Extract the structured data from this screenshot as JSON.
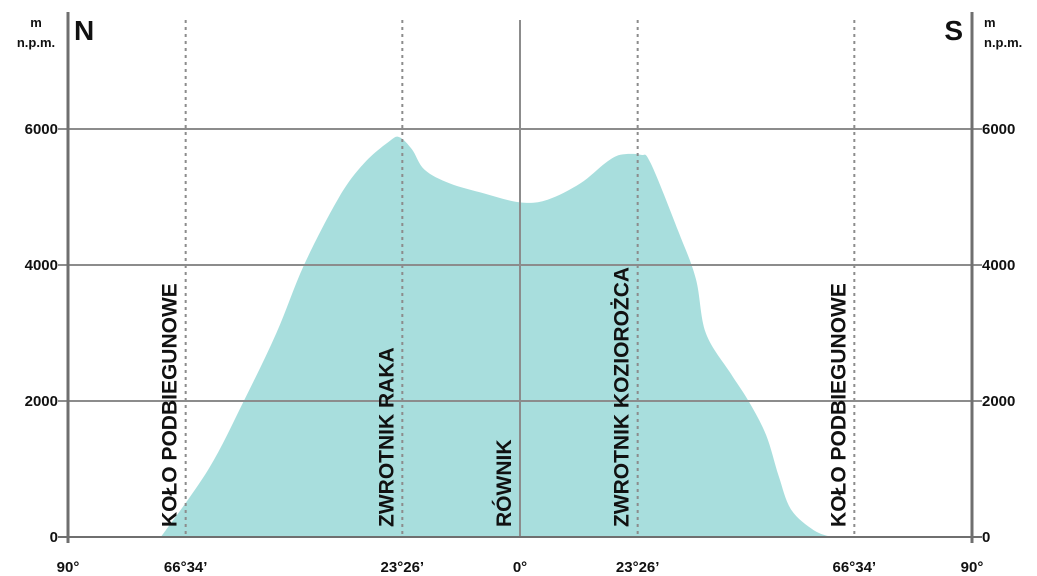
{
  "chart_data": {
    "type": "area",
    "title": "",
    "x_unit": "degrees latitude",
    "y_unit_left": [
      "m",
      "n.p.m."
    ],
    "y_unit_right": [
      "m",
      "n.p.m."
    ],
    "direction_left": "N",
    "direction_right": "S",
    "yticks": [
      0,
      2000,
      4000,
      6000
    ],
    "ylim": [
      0,
      6800
    ],
    "xlim": [
      -90,
      90
    ],
    "xticks": [
      {
        "value": -90,
        "label": "90°"
      },
      {
        "value": -66.57,
        "label": "66°34’"
      },
      {
        "value": -23.43,
        "label": "23°26’"
      },
      {
        "value": 0,
        "label": "0°"
      },
      {
        "value": 23.43,
        "label": "23°26’"
      },
      {
        "value": 66.57,
        "label": "66°34’"
      },
      {
        "value": 90,
        "label": "90°"
      }
    ],
    "reference_lines": [
      {
        "value": -66.57,
        "label": "KOŁO PODBIEGUNOWE",
        "style": "dotted"
      },
      {
        "value": -23.43,
        "label": "ZWROTNIK RAKA",
        "style": "dotted"
      },
      {
        "value": 0,
        "label": "RÓWNIK",
        "style": "solid"
      },
      {
        "value": 23.43,
        "label": "ZWROTNIK KOZIOROŻCA",
        "style": "dotted"
      },
      {
        "value": 66.57,
        "label": "KOŁO PODBIEGUNOWE",
        "style": "dotted"
      }
    ],
    "series": [
      {
        "color": "#a8dedd",
        "points": [
          [
            -71.5,
            0
          ],
          [
            -62,
            1000
          ],
          [
            -55,
            2000
          ],
          [
            -48.5,
            3000
          ],
          [
            -43,
            4000
          ],
          [
            -36,
            5000
          ],
          [
            -31,
            5500
          ],
          [
            -26,
            5820
          ],
          [
            -24,
            5880
          ],
          [
            -21.5,
            5700
          ],
          [
            -19,
            5400
          ],
          [
            -14,
            5200
          ],
          [
            -7,
            5050
          ],
          [
            0,
            4920
          ],
          [
            5.5,
            4960
          ],
          [
            12,
            5200
          ],
          [
            17,
            5500
          ],
          [
            20,
            5620
          ],
          [
            24,
            5620
          ],
          [
            26,
            5500
          ],
          [
            31.5,
            4500
          ],
          [
            35,
            3800
          ],
          [
            37,
            3000
          ],
          [
            42,
            2400
          ],
          [
            45.5,
            2000
          ],
          [
            49,
            1500
          ],
          [
            51.5,
            900
          ],
          [
            54,
            400
          ],
          [
            58.5,
            100
          ],
          [
            62,
            0
          ]
        ]
      }
    ],
    "colors": {
      "fill": "#a8dedd",
      "grid": "#8c8c8c",
      "axis": "#6f6f6f",
      "dotted": "#8c8c8c",
      "text": "#111111"
    }
  }
}
